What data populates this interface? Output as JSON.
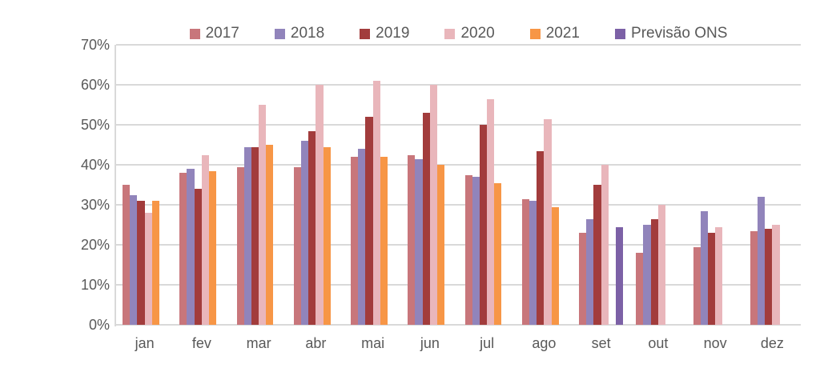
{
  "chart": {
    "text_color": "#595959",
    "gridline_color": "#d9d9d9",
    "background_color": "#ffffff"
  },
  "chart_data": {
    "type": "bar",
    "title": "",
    "xlabel": "",
    "ylabel": "",
    "categories": [
      "jan",
      "fev",
      "mar",
      "abr",
      "mai",
      "jun",
      "jul",
      "ago",
      "set",
      "out",
      "nov",
      "dez"
    ],
    "series": [
      {
        "name": "2017",
        "color": "#c8767b",
        "values": [
          35,
          38,
          39.5,
          39.5,
          42,
          42.5,
          37.5,
          31.5,
          23,
          18,
          19.5,
          23.5
        ]
      },
      {
        "name": "2018",
        "color": "#9184bb",
        "values": [
          32.5,
          39,
          44.5,
          46,
          44,
          41.5,
          37,
          31,
          26.5,
          25,
          28.5,
          32
        ]
      },
      {
        "name": "2019",
        "color": "#a23c3c",
        "values": [
          31,
          34,
          44.5,
          48.5,
          52,
          53,
          50,
          43.5,
          35,
          26.5,
          23,
          24
        ]
      },
      {
        "name": "2020",
        "color": "#e9b6bb",
        "values": [
          28,
          42.5,
          55,
          60,
          61,
          60,
          56.5,
          51.5,
          40,
          30,
          24.5,
          25
        ]
      },
      {
        "name": "2021",
        "color": "#f79646",
        "values": [
          31,
          38.5,
          45,
          44.5,
          42,
          40,
          35.5,
          29.5,
          null,
          null,
          null,
          null
        ]
      },
      {
        "name": "Previsão ONS",
        "color": "#7c61a6",
        "values": [
          null,
          null,
          null,
          null,
          null,
          null,
          null,
          null,
          24.5,
          null,
          null,
          null
        ]
      }
    ],
    "ylim": [
      0,
      70
    ],
    "ytick_step": 10,
    "yticks": [
      "0%",
      "10%",
      "20%",
      "30%",
      "40%",
      "50%",
      "60%",
      "70%"
    ],
    "grid": true,
    "legend_position": "top"
  }
}
